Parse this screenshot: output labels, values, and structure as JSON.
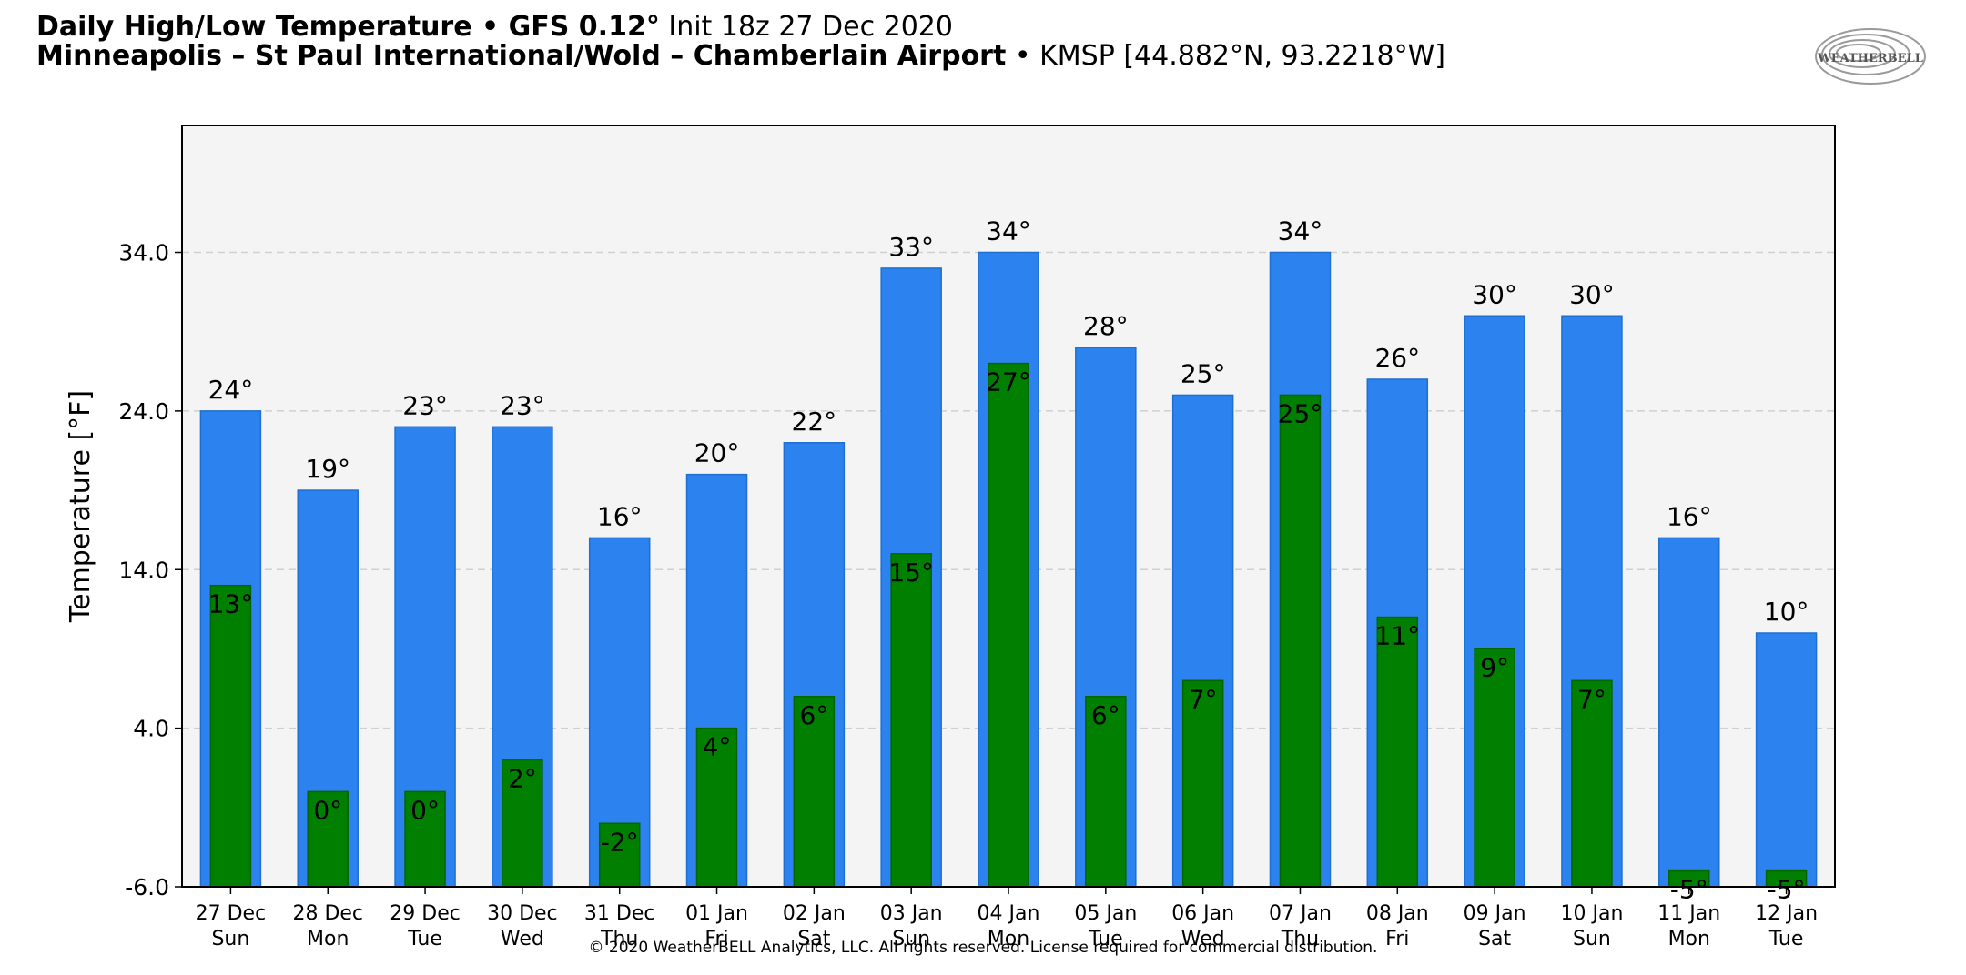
{
  "header": {
    "line1_bold": "Daily High/Low Temperature • GFS 0.12°",
    "line1_rest": " Init 18z 27 Dec 2020",
    "line2_bold": "Minneapolis – St Paul International/Wold – Chamberlain Airport",
    "line2_rest": " • KMSP [44.882°N, 93.2218°W]"
  },
  "logo": {
    "text": "WEATHERBELL"
  },
  "copyright": "© 2020 WeatherBELL Analytics, LLC. All rights reserved. License required for commercial distribution.",
  "colors": {
    "high": "#2c82ee",
    "low": "#007f00",
    "plot_bg": "#f4f4f4"
  },
  "chart_data": {
    "type": "bar",
    "title": "Daily High/Low Temperature",
    "ylabel": "Temperature [°F]",
    "xlabel": "",
    "ylim": [
      -6,
      42
    ],
    "yticks": [
      -6.0,
      4.0,
      14.0,
      24.0,
      34.0
    ],
    "ytick_labels": [
      "-6.0",
      "4.0",
      "14.0",
      "24.0",
      "34.0"
    ],
    "grid": true,
    "dates": [
      "27 Dec",
      "28 Dec",
      "29 Dec",
      "30 Dec",
      "31 Dec",
      "01 Jan",
      "02 Jan",
      "03 Jan",
      "04 Jan",
      "05 Jan",
      "06 Jan",
      "07 Jan",
      "08 Jan",
      "09 Jan",
      "10 Jan",
      "11 Jan",
      "12 Jan"
    ],
    "days": [
      "Sun",
      "Mon",
      "Tue",
      "Wed",
      "Thu",
      "Fri",
      "Sat",
      "Sun",
      "Mon",
      "Tue",
      "Wed",
      "Thu",
      "Fri",
      "Sat",
      "Sun",
      "Mon",
      "Tue"
    ],
    "series": [
      {
        "name": "High",
        "values": [
          24,
          19,
          23,
          23,
          16,
          20,
          22,
          33,
          34,
          28,
          25,
          34,
          26,
          30,
          30,
          16,
          10
        ]
      },
      {
        "name": "Low",
        "values": [
          13,
          0,
          0,
          2,
          -2,
          4,
          6,
          15,
          27,
          6,
          7,
          25,
          11,
          9,
          7,
          -5,
          -5
        ]
      }
    ],
    "labels": {
      "high": [
        "24°",
        "19°",
        "23°",
        "23°",
        "16°",
        "20°",
        "22°",
        "33°",
        "34°",
        "28°",
        "25°",
        "34°",
        "26°",
        "30°",
        "30°",
        "16°",
        "10°"
      ],
      "low": [
        "13°",
        "0°",
        "0°",
        "2°",
        "-2°",
        "4°",
        "6°",
        "15°",
        "27°",
        "6°",
        "7°",
        "25°",
        "11°",
        "9°",
        "7°",
        "-5°",
        "-5°"
      ]
    }
  }
}
